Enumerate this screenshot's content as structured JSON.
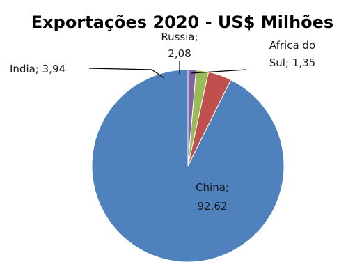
{
  "chart_data": {
    "type": "pie",
    "title": "Exportações 2020 - US$ Milhões",
    "categories": [
      "China",
      "India",
      "Russia",
      "Africa do Sul"
    ],
    "values": [
      92.62,
      3.94,
      2.08,
      1.35
    ],
    "colors": [
      "#4f81bd",
      "#c0504d",
      "#9bbb59",
      "#8064a2"
    ],
    "data_labels": {
      "china": [
        "China;",
        "92,62"
      ],
      "india": [
        "India; 3,94"
      ],
      "russia": [
        "Russia;",
        "2,08"
      ],
      "africa": [
        "Africa do",
        "Sul; 1,35"
      ]
    },
    "start_angle_deg": 0,
    "direction": "counterclockwise",
    "legend": "none"
  }
}
